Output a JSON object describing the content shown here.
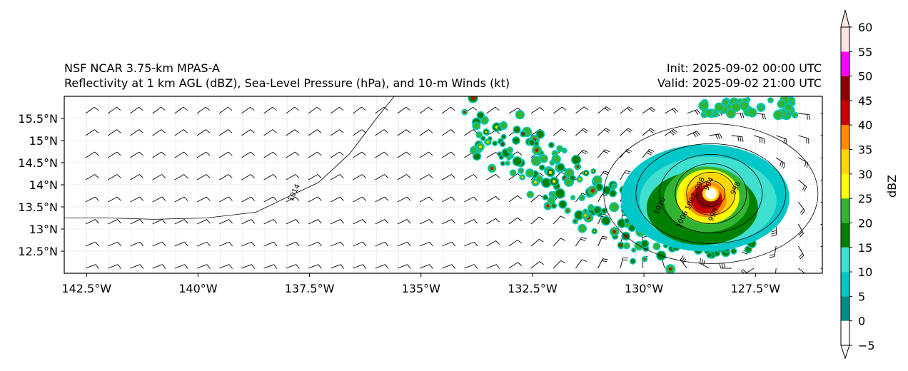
{
  "titles": {
    "left_line1": "NSF NCAR 3.75-km MPAS-A",
    "left_line2": "Reflectivity at 1 km AGL (dBZ), Sea-Level Pressure (hPa), and 10-m Winds (kt)",
    "right_line1": "Init: 2025-09-02 00:00 UTC",
    "right_line2": "Valid: 2025-09-02 21:00 UTC"
  },
  "map": {
    "lon_range": [
      -143.0,
      -126.0
    ],
    "lat_range": [
      12.0,
      16.0
    ],
    "lon_ticks": [
      {
        "value": -142.5,
        "label": "142.5°W"
      },
      {
        "value": -140.0,
        "label": "140°W"
      },
      {
        "value": -137.5,
        "label": "137.5°W"
      },
      {
        "value": -135.0,
        "label": "135°W"
      },
      {
        "value": -132.5,
        "label": "132.5°W"
      },
      {
        "value": -130.0,
        "label": "130°W"
      },
      {
        "value": -127.5,
        "label": "127.5°W"
      }
    ],
    "lat_ticks": [
      {
        "value": 15.5,
        "label": "15.5°N"
      },
      {
        "value": 15.0,
        "label": "15°N"
      },
      {
        "value": 14.5,
        "label": "14.5°N"
      },
      {
        "value": 14.0,
        "label": "14°N"
      },
      {
        "value": 13.5,
        "label": "13.5°N"
      },
      {
        "value": 13.0,
        "label": "13°N"
      },
      {
        "value": 12.5,
        "label": "12.5°N"
      }
    ],
    "storm_center": {
      "lon": -128.5,
      "lat": 13.8
    },
    "isobars": [
      {
        "label": "1014",
        "label_lon": -137.8,
        "label_lat": 13.8
      },
      {
        "label": "1010",
        "label_lon": -129.6,
        "label_lat": 13.5
      },
      {
        "label": "1006",
        "label_lon": -129.1,
        "label_lat": 13.2
      },
      {
        "label": "1002",
        "label_lon": -128.9,
        "label_lat": 13.6
      },
      {
        "label": "998",
        "label_lon": -128.7,
        "label_lat": 14.0
      },
      {
        "label": "994",
        "label_lon": -128.5,
        "label_lat": 14.0
      },
      {
        "label": "990",
        "label_lon": -128.4,
        "label_lat": 13.3
      },
      {
        "label": "998",
        "label_lon": -127.9,
        "label_lat": 13.9
      }
    ]
  },
  "colorbar": {
    "label": "dBZ",
    "ticks": [
      "60",
      "55",
      "50",
      "45",
      "40",
      "35",
      "30",
      "25",
      "20",
      "15",
      "10",
      "5",
      "0",
      "−5"
    ],
    "bins": [
      {
        "from": -5,
        "to": 0,
        "color": "#ffffff"
      },
      {
        "from": 0,
        "to": 5,
        "color": "#008a8a"
      },
      {
        "from": 5,
        "to": 10,
        "color": "#00c8c8"
      },
      {
        "from": 10,
        "to": 15,
        "color": "#40e0d0"
      },
      {
        "from": 15,
        "to": 20,
        "color": "#008000"
      },
      {
        "from": 20,
        "to": 25,
        "color": "#32b432"
      },
      {
        "from": 25,
        "to": 30,
        "color": "#ffff00"
      },
      {
        "from": 30,
        "to": 35,
        "color": "#ffd700"
      },
      {
        "from": 35,
        "to": 40,
        "color": "#ff8c00"
      },
      {
        "from": 40,
        "to": 45,
        "color": "#cc0000"
      },
      {
        "from": 45,
        "to": 50,
        "color": "#8b0000"
      },
      {
        "from": 50,
        "to": 55,
        "color": "#ff00ff"
      },
      {
        "from": 55,
        "to": 60,
        "color": "#ffe4e1"
      }
    ],
    "extend_top_color": "#ffe4e1",
    "extend_bottom_color": "#ffffff"
  }
}
